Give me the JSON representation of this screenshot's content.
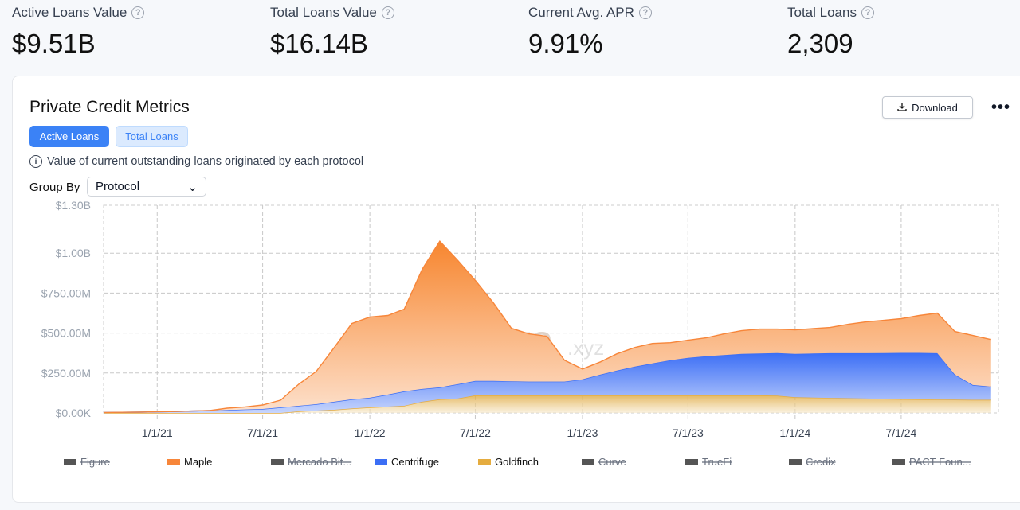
{
  "stats": [
    {
      "label": "Active Loans Value",
      "value": "$9.51B"
    },
    {
      "label": "Total Loans Value",
      "value": "$16.14B"
    },
    {
      "label": "Current Avg. APR",
      "value": "9.91%"
    },
    {
      "label": "Total Loans",
      "value": "2,309"
    }
  ],
  "card": {
    "title": "Private Credit Metrics",
    "tabs": [
      "Active Loans",
      "Total Loans"
    ],
    "info": "Value of current outstanding loans originated by each protocol",
    "group_by_label": "Group By",
    "group_by_value": "Protocol",
    "download_label": "Download",
    "more_label": "•••",
    "watermark": "rwa.xyz"
  },
  "chart_data": {
    "type": "area",
    "stacked": true,
    "ylim": [
      0,
      1300000000
    ],
    "y_ticks": [
      "$0.00K",
      "$250.00M",
      "$500.00M",
      "$750.00M",
      "$1.00B",
      "$1.30B"
    ],
    "y_tick_values": [
      0,
      250000000,
      500000000,
      750000000,
      1000000000,
      1300000000
    ],
    "x_ticks": [
      "1/1/21",
      "7/1/21",
      "1/1/22",
      "7/1/22",
      "1/1/23",
      "7/1/23",
      "1/1/24",
      "7/1/24"
    ],
    "x_tick_dates": [
      "2021-01-01",
      "2021-07-01",
      "2022-01-01",
      "2022-07-01",
      "2023-01-01",
      "2023-07-01",
      "2024-01-01",
      "2024-07-01"
    ],
    "x_range": [
      "2020-10-01",
      "2024-12-15"
    ],
    "grid": true,
    "legend_position": "bottom",
    "units": "USD millions",
    "x": [
      "2020-10-01",
      "2020-11-01",
      "2020-12-01",
      "2021-01-01",
      "2021-02-01",
      "2021-03-01",
      "2021-04-01",
      "2021-05-01",
      "2021-06-01",
      "2021-07-01",
      "2021-08-01",
      "2021-09-01",
      "2021-10-01",
      "2021-11-01",
      "2021-12-01",
      "2022-01-01",
      "2022-02-01",
      "2022-03-01",
      "2022-04-01",
      "2022-05-01",
      "2022-06-01",
      "2022-07-01",
      "2022-08-01",
      "2022-09-01",
      "2022-10-01",
      "2022-11-01",
      "2022-12-01",
      "2023-01-01",
      "2023-02-01",
      "2023-03-01",
      "2023-04-01",
      "2023-05-01",
      "2023-06-01",
      "2023-07-01",
      "2023-08-01",
      "2023-09-01",
      "2023-10-01",
      "2023-11-01",
      "2023-12-01",
      "2024-01-01",
      "2024-02-01",
      "2024-03-01",
      "2024-04-01",
      "2024-05-01",
      "2024-06-01",
      "2024-07-01",
      "2024-08-01",
      "2024-09-01",
      "2024-10-01",
      "2024-11-01",
      "2024-12-01"
    ],
    "series": [
      {
        "name": "Goldfinch",
        "color": "#e5ac3f",
        "visible": true,
        "values": [
          0,
          0,
          0,
          0,
          0,
          0,
          0,
          0,
          0,
          0,
          0,
          10,
          15,
          20,
          28,
          35,
          40,
          45,
          70,
          85,
          90,
          110,
          110,
          110,
          110,
          110,
          110,
          110,
          110,
          110,
          110,
          110,
          110,
          110,
          110,
          110,
          110,
          110,
          108,
          98,
          96,
          94,
          92,
          90,
          88,
          86,
          85,
          84,
          83,
          82,
          82
        ]
      },
      {
        "name": "Centrifuge",
        "color": "#3b6ef5",
        "visible": true,
        "values": [
          3,
          4,
          5,
          7,
          9,
          12,
          15,
          18,
          22,
          25,
          35,
          35,
          40,
          50,
          57,
          60,
          75,
          90,
          80,
          75,
          90,
          90,
          90,
          88,
          86,
          86,
          86,
          100,
          130,
          155,
          180,
          200,
          220,
          235,
          245,
          252,
          260,
          262,
          267,
          272,
          276,
          280,
          282,
          284,
          287,
          290,
          291,
          290,
          157,
          93,
          83
        ]
      },
      {
        "name": "Maple",
        "color": "#f7863a",
        "visible": true,
        "values": [
          0,
          0,
          0,
          0,
          0,
          0,
          0,
          12,
          16,
          25,
          45,
          135,
          205,
          340,
          475,
          505,
          495,
          515,
          750,
          915,
          775,
          630,
          490,
          332,
          299,
          284,
          134,
          65,
          80,
          105,
          120,
          125,
          110,
          110,
          115,
          133,
          145,
          153,
          150,
          150,
          156,
          161,
          181,
          196,
          205,
          214,
          234,
          251,
          270,
          310,
          295
        ]
      }
    ],
    "legend": [
      {
        "name": "Figure",
        "color": "#555555",
        "visible": false
      },
      {
        "name": "Maple",
        "color": "#f7863a",
        "visible": true
      },
      {
        "name": "Mercado Bit...",
        "color": "#555555",
        "visible": false
      },
      {
        "name": "Centrifuge",
        "color": "#3b6ef5",
        "visible": true
      },
      {
        "name": "Goldfinch",
        "color": "#e5ac3f",
        "visible": true
      },
      {
        "name": "Curve",
        "color": "#555555",
        "visible": false
      },
      {
        "name": "TrueFi",
        "color": "#555555",
        "visible": false
      },
      {
        "name": "Credix",
        "color": "#555555",
        "visible": false
      },
      {
        "name": "PACT Foun...",
        "color": "#555555",
        "visible": false
      }
    ]
  }
}
